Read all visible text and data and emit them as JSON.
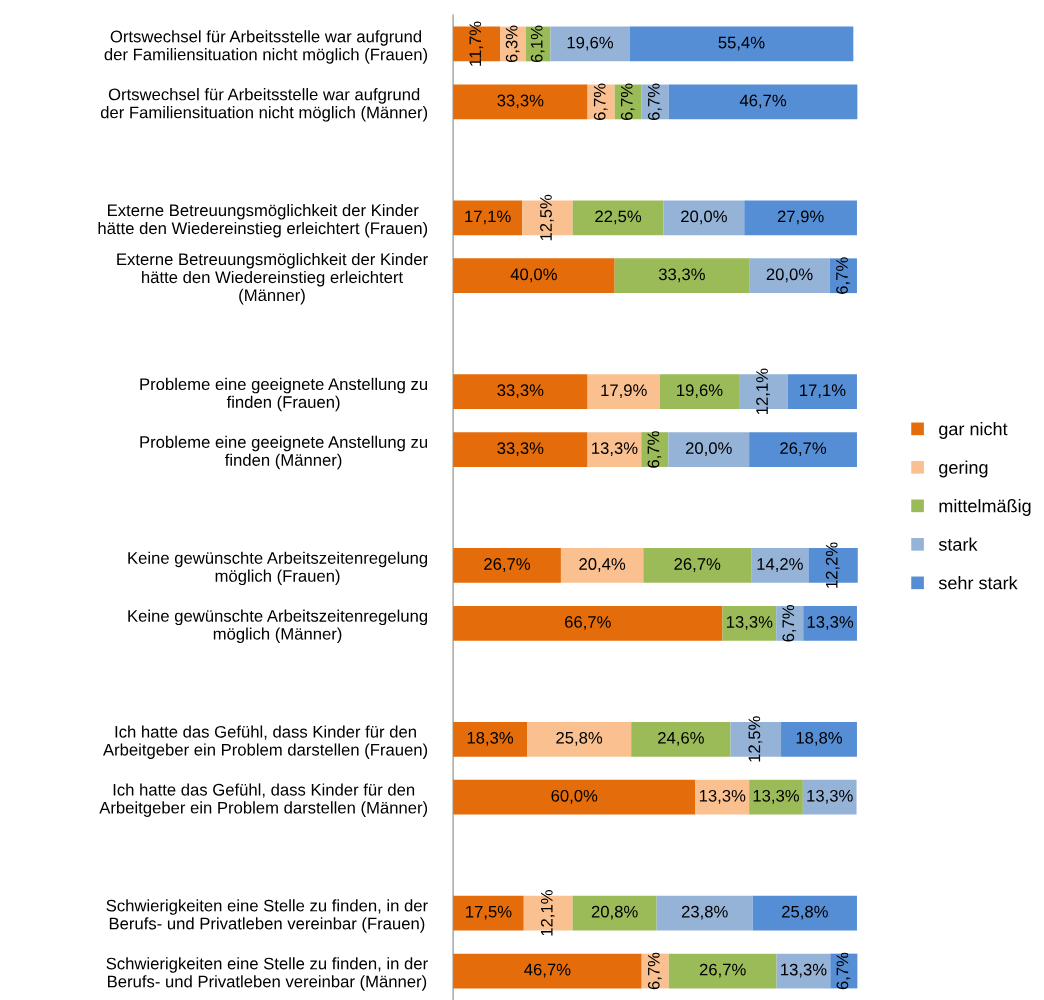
{
  "chart_data": {
    "type": "bar",
    "orientation": "horizontal",
    "stacked": true,
    "tick_labels": "y",
    "grid": false,
    "legend": "right",
    "categories": [
      "Ortswechsel für Arbeitsstelle war aufgrund\nder Familiensituation nicht möglich (Frauen)",
      "Ortswechsel für Arbeitsstelle war aufgrund\nder Familiensituation nicht möglich (Männer)",
      null,
      "Externe Betreuungsmöglichkeit der Kinder\nhätte den Wiedereinstieg erleichtert (Frauen)",
      "Externe Betreuungsmöglichkeit der Kinder\nhätte den Wiedereinstieg erleichtert\n(Männer)",
      null,
      "Probleme eine geeignete Anstellung zu\nfinden (Frauen)",
      "Probleme eine geeignete Anstellung zu\nfinden (Männer)",
      null,
      "Keine gewünschte Arbeitszeitenregelung\nmöglich (Frauen)",
      "Keine gewünschte Arbeitszeitenregelung\nmöglich (Männer)",
      null,
      "Ich hatte das Gefühl, dass Kinder für den\nArbeitgeber ein Problem darstellen (Frauen)",
      "Ich hatte das Gefühl, dass Kinder für den\nArbeitgeber ein Problem darstellen (Männer)",
      null,
      "Schwierigkeiten eine Stelle zu finden, in der\nBerufs- und Privatleben vereinbar (Frauen)",
      "Schwierigkeiten eine Stelle zu finden, in der\nBerufs- und Privatleben vereinbar (Männer)"
    ],
    "series": [
      {
        "name": "gar nicht",
        "color": "#e46c0a",
        "values": [
          11.7,
          33.3,
          null,
          17.1,
          40.0,
          null,
          33.3,
          33.3,
          null,
          26.7,
          66.7,
          null,
          18.3,
          60.0,
          null,
          17.5,
          46.7
        ],
        "value_labels": [
          "11,7%",
          "33,3%",
          null,
          "17,1%",
          "40,0%",
          null,
          "33,3%",
          "33,3%",
          null,
          "26,7%",
          "66,7%",
          null,
          "18,3%",
          "60,0%",
          null,
          "17,5%",
          "46,7%"
        ]
      },
      {
        "name": "gering",
        "color": "#fac090",
        "values": [
          6.3,
          6.7,
          null,
          12.5,
          null,
          null,
          17.9,
          13.3,
          null,
          20.4,
          null,
          null,
          25.8,
          13.3,
          null,
          12.1,
          6.7
        ],
        "value_labels": [
          "6,3%",
          "6,7%",
          null,
          "12,5%",
          null,
          null,
          "17,9%",
          "13,3%",
          null,
          "20,4%",
          null,
          null,
          "25,8%",
          "13,3%",
          null,
          "12,1%",
          "6,7%"
        ]
      },
      {
        "name": "mittelmäßig",
        "color": "#9bbb59",
        "values": [
          6.1,
          6.7,
          null,
          22.5,
          33.3,
          null,
          19.6,
          6.7,
          null,
          26.7,
          13.3,
          null,
          24.6,
          13.3,
          null,
          20.8,
          26.7
        ],
        "value_labels": [
          "6,1%",
          "6,7%",
          null,
          "22,5%",
          "33,3%",
          null,
          "19,6%",
          "6,7%",
          null,
          "26,7%",
          "13,3%",
          null,
          "24,6%",
          "13,3%",
          null,
          "20,8%",
          "26,7%"
        ]
      },
      {
        "name": "stark",
        "color": "#95b3d7",
        "values": [
          19.6,
          6.7,
          null,
          20.0,
          20.0,
          null,
          12.1,
          20.0,
          null,
          14.2,
          6.7,
          null,
          12.5,
          13.3,
          null,
          23.8,
          13.3
        ],
        "value_labels": [
          "19,6%",
          "6,7%",
          null,
          "20,0%",
          "20,0%",
          null,
          "12,1%",
          "20,0%",
          null,
          "14,2%",
          "6,7%",
          null,
          "12,5%",
          "13,3%",
          null,
          "23,8%",
          "13,3%"
        ]
      },
      {
        "name": "sehr stark",
        "color": "#558ed5",
        "values": [
          55.4,
          46.7,
          null,
          27.9,
          6.7,
          null,
          17.1,
          26.7,
          null,
          12.2,
          13.3,
          null,
          18.8,
          null,
          null,
          25.8,
          6.7
        ],
        "value_labels": [
          "55,4%",
          "46,7%",
          null,
          "27,9%",
          "6,7%",
          null,
          "17,1%",
          "26,7%",
          null,
          "12,2%",
          "13,3%",
          null,
          "18,8%",
          null,
          null,
          "25,8%",
          "6,7%"
        ]
      }
    ]
  }
}
